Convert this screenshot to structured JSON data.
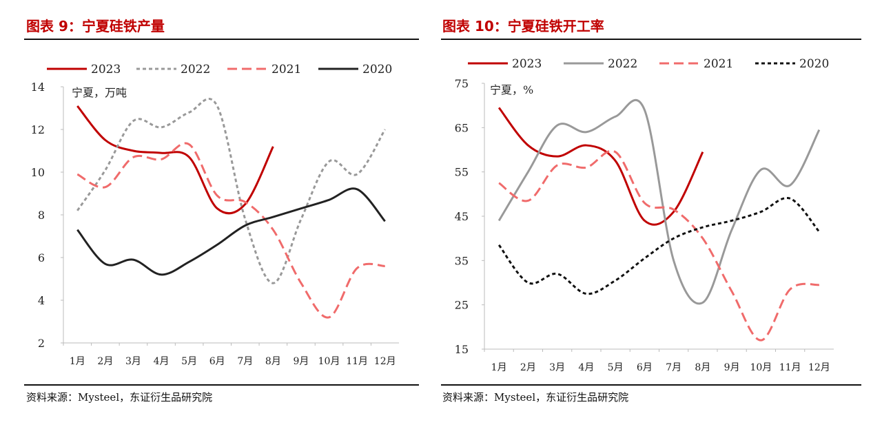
{
  "left": {
    "title": "图表 9：宁夏硅铁产量",
    "source": "资料来源：Mysteel，东证衍生品研究院",
    "chart_data": {
      "type": "line",
      "title": "图表 9：宁夏硅铁产量",
      "ylabel": "宁夏，万吨",
      "categories": [
        "1月",
        "2月",
        "3月",
        "4月",
        "5月",
        "6月",
        "7月",
        "8月",
        "9月",
        "10月",
        "11月",
        "12月"
      ],
      "ylim": [
        2,
        14
      ],
      "yticks": [
        2,
        4,
        6,
        8,
        10,
        12,
        14
      ],
      "legend_position": "top",
      "grid": false,
      "series": [
        {
          "name": "2023",
          "color": "#c00000",
          "dash": "solid",
          "values": [
            13.1,
            11.5,
            11.0,
            10.9,
            10.7,
            8.3,
            8.5,
            11.2,
            null,
            null,
            null,
            null
          ]
        },
        {
          "name": "2022",
          "color": "#999999",
          "dash": "short",
          "values": [
            8.2,
            10.1,
            12.4,
            12.1,
            12.8,
            13.1,
            7.8,
            4.8,
            7.8,
            10.5,
            9.9,
            12.0
          ]
        },
        {
          "name": "2021",
          "color": "#f06b6b",
          "dash": "long",
          "values": [
            9.9,
            9.3,
            10.7,
            10.6,
            11.3,
            8.9,
            8.6,
            7.3,
            4.8,
            3.2,
            5.5,
            5.6
          ]
        },
        {
          "name": "2020",
          "color": "#222222",
          "dash": "solid",
          "values": [
            7.3,
            5.7,
            5.9,
            5.2,
            5.8,
            6.6,
            7.5,
            7.9,
            8.3,
            8.7,
            9.2,
            7.7
          ]
        }
      ]
    }
  },
  "right": {
    "title": "图表 10：宁夏硅铁开工率",
    "source": "资料来源：Mysteel，东证衍生品研究院",
    "chart_data": {
      "type": "line",
      "title": "图表 10：宁夏硅铁开工率",
      "ylabel": "宁夏，%",
      "categories": [
        "1月",
        "2月",
        "3月",
        "4月",
        "5月",
        "6月",
        "7月",
        "8月",
        "9月",
        "10月",
        "11月",
        "12月"
      ],
      "ylim": [
        15,
        75
      ],
      "yticks": [
        15,
        25,
        35,
        45,
        55,
        65,
        75
      ],
      "legend_position": "top",
      "grid": false,
      "series": [
        {
          "name": "2023",
          "color": "#c00000",
          "dash": "solid",
          "values": [
            69.5,
            61.0,
            58.5,
            61.0,
            57.5,
            44.0,
            46.0,
            59.5,
            null,
            null,
            null,
            null
          ]
        },
        {
          "name": "2022",
          "color": "#999999",
          "dash": "solid",
          "values": [
            44.0,
            55.0,
            65.5,
            64.0,
            67.5,
            69.0,
            35.0,
            25.5,
            42.0,
            55.5,
            52.0,
            64.5
          ]
        },
        {
          "name": "2021",
          "color": "#f06b6b",
          "dash": "long",
          "values": [
            52.5,
            48.5,
            56.5,
            56.0,
            59.5,
            48.0,
            46.5,
            40.0,
            28.0,
            17.0,
            28.5,
            29.5
          ]
        },
        {
          "name": "2020",
          "color": "#111111",
          "dash": "short",
          "values": [
            38.5,
            30.0,
            32.0,
            27.5,
            30.5,
            35.5,
            40.0,
            42.5,
            44.0,
            46.0,
            49.0,
            41.5
          ]
        }
      ]
    }
  }
}
